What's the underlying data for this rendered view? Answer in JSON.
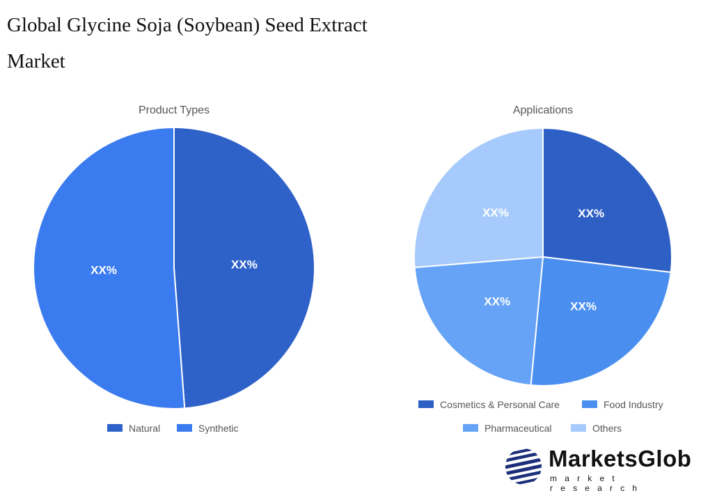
{
  "title": "Global Glycine Soja (Soybean) Seed Extract Market",
  "chart_data": [
    {
      "type": "pie",
      "title": "Product Types",
      "categories": [
        "Natural",
        "Synthetic"
      ],
      "values": [
        48.8,
        51.2
      ],
      "data_labels": [
        "XX%",
        "XX%"
      ],
      "colors": [
        "#2f62c9",
        "#3b7bf0"
      ],
      "legend": "bottom"
    },
    {
      "type": "pie",
      "title": "Applications",
      "categories": [
        "Cosmetics & Personal Care",
        "Food Industry",
        "Pharmaceutical",
        "Others"
      ],
      "values": [
        26.9,
        24.6,
        22.2,
        26.3
      ],
      "data_labels": [
        "XX%",
        "XX%",
        "XX%",
        "XX%"
      ],
      "colors": [
        "#2d5fc4",
        "#4a8ff0",
        "#66a3f6",
        "#a6cafb"
      ],
      "legend": "bottom"
    }
  ],
  "logo": {
    "name": "MarketsGlob",
    "tagline": "market research"
  }
}
